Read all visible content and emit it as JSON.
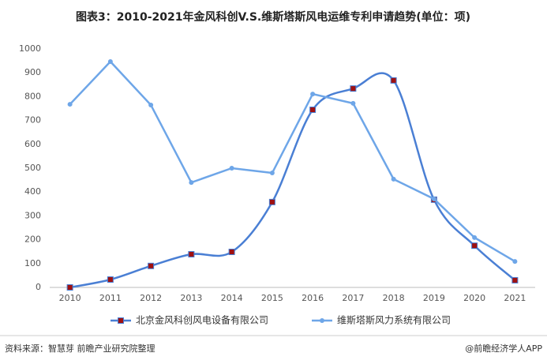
{
  "chart_data": {
    "type": "line",
    "title": "图表3：2010-2021年金风科创V.S.维斯塔斯风电运维专利申请趋势(单位：项)",
    "categories": [
      "2010",
      "2011",
      "2012",
      "2013",
      "2014",
      "2015",
      "2016",
      "2017",
      "2018",
      "2019",
      "2020",
      "2021"
    ],
    "series": [
      {
        "name": "北京金风科创风电设备有限公司",
        "color": "#4a7fd4",
        "marker_color": "#a01010",
        "smooth": true,
        "values": [
          0,
          33,
          90,
          139,
          149,
          358,
          745,
          834,
          868,
          368,
          175,
          30
        ]
      },
      {
        "name": "维斯塔斯风力系统有限公司",
        "color": "#6ea6e8",
        "smooth": false,
        "values": [
          768,
          947,
          765,
          440,
          500,
          480,
          811,
          772,
          454,
          371,
          209,
          109
        ]
      }
    ],
    "ylim": [
      0,
      1000
    ],
    "yticks": [
      0,
      100,
      200,
      300,
      400,
      500,
      600,
      700,
      800,
      900,
      1000
    ],
    "grid": false,
    "source": "资料来源：智慧芽 前瞻产业研究院整理",
    "credit": "@前瞻经济学人APP"
  }
}
